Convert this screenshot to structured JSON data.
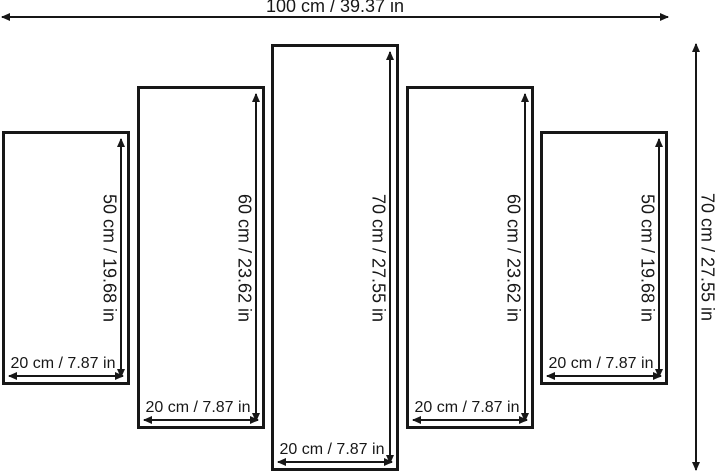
{
  "overall": {
    "width_label": "100 cm / 39.37 in",
    "height_label": "70 cm / 27.55 in"
  },
  "panels": [
    {
      "height_label": "50 cm / 19.68 in",
      "width_label": "20 cm / 7.87 in"
    },
    {
      "height_label": "60 cm / 23.62 in",
      "width_label": "20 cm / 7.87 in"
    },
    {
      "height_label": "70 cm / 27.55 in",
      "width_label": "20 cm / 7.87 in"
    },
    {
      "height_label": "60 cm / 23.62 in",
      "width_label": "20 cm / 7.87 in"
    },
    {
      "height_label": "50 cm / 19.68 in",
      "width_label": "20 cm / 7.87 in"
    }
  ],
  "colors": {
    "line": "#171717",
    "background": "#ffffff"
  }
}
